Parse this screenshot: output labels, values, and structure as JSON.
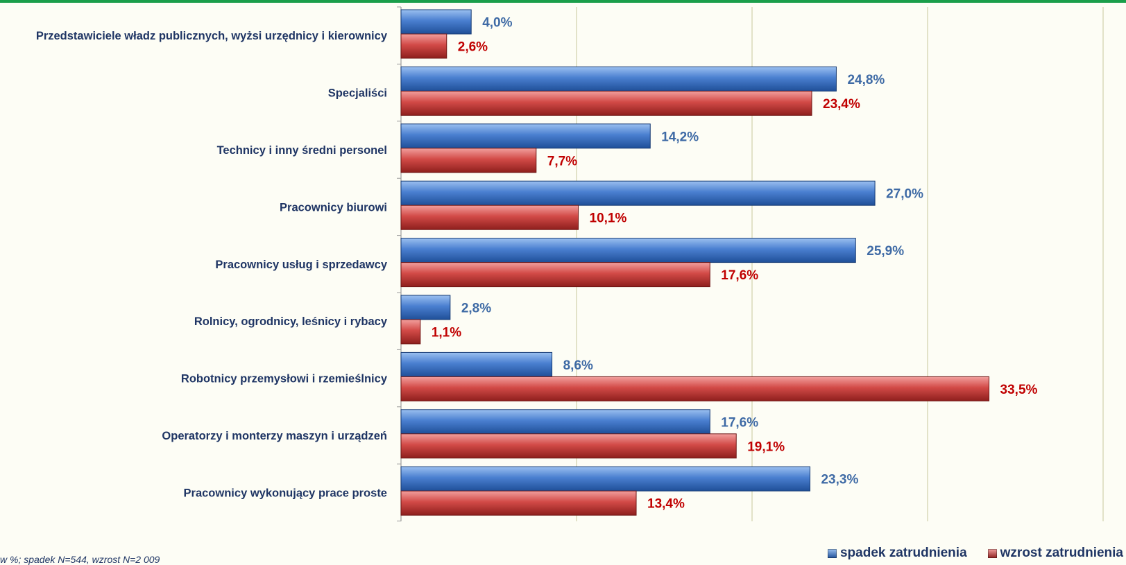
{
  "chart_data": {
    "type": "bar",
    "orientation": "horizontal",
    "categories": [
      "Przedstawiciele władz publicznych, wyżsi urzędnicy i kierownicy",
      "Specjaliści",
      "Technicy i inny średni personel",
      "Pracownicy biurowi",
      "Pracownicy usług i sprzedawcy",
      "Rolnicy, ogrodnicy, leśnicy i rybacy",
      "Robotnicy przemysłowi i rzemieślnicy",
      "Operatorzy i monterzy maszyn i urządzeń",
      "Pracownicy wykonujący prace proste"
    ],
    "series": [
      {
        "name": "spadek zatrudnienia",
        "color": "#3c6fbe",
        "label_color": "#3e6aa5",
        "values": [
          4.0,
          24.8,
          14.2,
          27.0,
          25.9,
          2.8,
          8.6,
          17.6,
          23.3
        ],
        "labels": [
          "4,0%",
          "24,8%",
          "14,2%",
          "27,0%",
          "25,9%",
          "2,8%",
          "8,6%",
          "17,6%",
          "23,3%"
        ]
      },
      {
        "name": "wzrost zatrudnienia",
        "color": "#c0403f",
        "label_color": "#c00000",
        "values": [
          2.6,
          23.4,
          7.7,
          10.1,
          17.6,
          1.1,
          33.5,
          19.1,
          13.4
        ],
        "labels": [
          "2,6%",
          "23,4%",
          "7,7%",
          "10,1%",
          "17,6%",
          "1,1%",
          "33,5%",
          "19,1%",
          "13,4%"
        ]
      }
    ],
    "xlim": [
      0,
      40
    ],
    "grid": true,
    "legend_position": "bottom-right"
  },
  "footnote": "w %; spadek N=544, wzrost N=2 009"
}
